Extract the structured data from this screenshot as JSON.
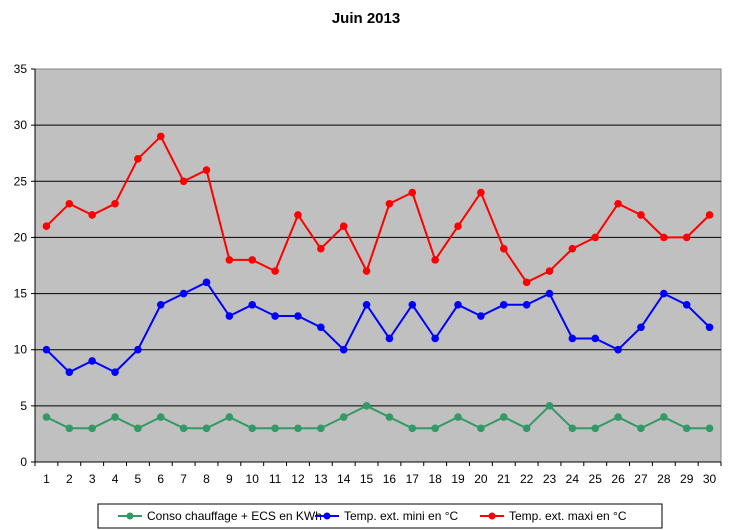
{
  "chart_data": {
    "type": "line",
    "title": "Juin 2013",
    "categories": [
      "1",
      "2",
      "3",
      "4",
      "5",
      "6",
      "7",
      "8",
      "9",
      "10",
      "11",
      "12",
      "13",
      "14",
      "15",
      "16",
      "17",
      "18",
      "19",
      "20",
      "21",
      "22",
      "23",
      "24",
      "25",
      "26",
      "27",
      "28",
      "29",
      "30"
    ],
    "ylim": [
      0,
      35
    ],
    "yticks": [
      0,
      5,
      10,
      15,
      20,
      25,
      30,
      35
    ],
    "grid": true,
    "legend_position": "bottom",
    "series": [
      {
        "name": "Conso chauffage + ECS en KWh",
        "color": "#339966",
        "values": [
          4,
          3,
          3,
          4,
          3,
          4,
          3,
          3,
          4,
          3,
          3,
          3,
          3,
          4,
          5,
          4,
          3,
          3,
          4,
          3,
          4,
          3,
          5,
          3,
          3,
          4,
          3,
          4,
          3,
          3
        ]
      },
      {
        "name": "Temp. ext. mini en °C",
        "color": "#0000ff",
        "values": [
          10,
          8,
          9,
          8,
          10,
          14,
          15,
          16,
          13,
          14,
          13,
          13,
          12,
          10,
          14,
          11,
          14,
          11,
          14,
          13,
          14,
          14,
          15,
          11,
          11,
          10,
          12,
          15,
          14,
          12
        ]
      },
      {
        "name": "Temp. ext. maxi en °C",
        "color": "#ff0000",
        "values": [
          21,
          23,
          22,
          23,
          27,
          29,
          25,
          26,
          18,
          18,
          17,
          22,
          19,
          21,
          17,
          23,
          24,
          18,
          21,
          24,
          19,
          16,
          17,
          19,
          20,
          23,
          22,
          20,
          20,
          22
        ]
      }
    ]
  }
}
